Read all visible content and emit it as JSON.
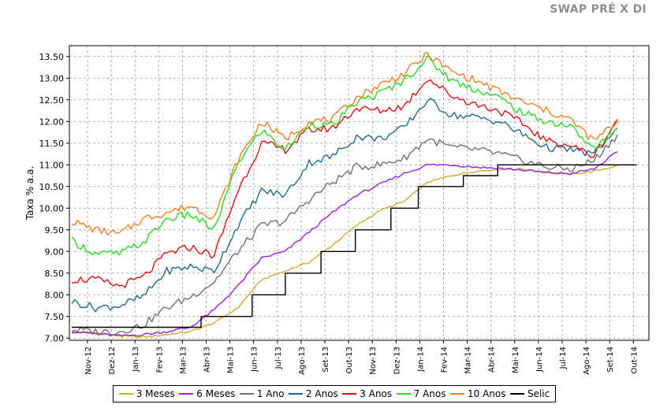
{
  "chart_data": {
    "type": "line",
    "title": "SWAP PRÉ X DI",
    "ylabel": "Taxa % a.a.",
    "xlabel": "",
    "ylim": [
      6.95,
      13.75
    ],
    "y_ticks": [
      "7.00",
      "7.50",
      "8.00",
      "8.50",
      "9.00",
      "9.50",
      "10.00",
      "10.50",
      "11.00",
      "11.50",
      "12.00",
      "12.50",
      "13.00",
      "13.50"
    ],
    "categories": [
      "Nov-12",
      "Dez-12",
      "Jan-13",
      "Fev-13",
      "Mar-13",
      "Abr-13",
      "Mai-13",
      "Jun-13",
      "Jul-13",
      "Ago-13",
      "Set-13",
      "Out-13",
      "Nov-13",
      "Dez-13",
      "Jan-14",
      "Fev-14",
      "Mar-14",
      "Abr-14",
      "Mai-14",
      "Jun-14",
      "Jul-14",
      "Ago-14",
      "Set-14",
      "Out-14"
    ],
    "grid": true,
    "legend_position": "bottom",
    "series": [
      {
        "name": "3 Meses",
        "color": "#d4aa2a",
        "values": [
          7.15,
          7.12,
          7.05,
          7.02,
          7.08,
          7.15,
          7.35,
          7.7,
          8.35,
          8.55,
          8.75,
          9.15,
          9.6,
          9.95,
          10.15,
          10.6,
          10.75,
          10.85,
          10.9,
          10.9,
          10.82,
          10.78,
          10.85,
          10.98
        ]
      },
      {
        "name": "6 Meses",
        "color": "#9a1fe0",
        "values": [
          7.15,
          7.1,
          7.05,
          7.08,
          7.15,
          7.25,
          7.65,
          8.2,
          8.85,
          9.0,
          9.45,
          9.9,
          10.3,
          10.55,
          10.8,
          11.0,
          11.0,
          10.95,
          10.92,
          10.88,
          10.82,
          10.8,
          10.9,
          11.3
        ]
      },
      {
        "name": "1 Ano",
        "color": "#707070",
        "values": [
          7.2,
          7.15,
          7.15,
          7.3,
          7.7,
          7.95,
          8.3,
          9.0,
          9.6,
          9.7,
          10.2,
          10.6,
          10.95,
          11.0,
          11.15,
          11.6,
          11.4,
          11.35,
          11.25,
          11.1,
          10.95,
          10.9,
          11.1,
          11.7
        ]
      },
      {
        "name": "2 Anos",
        "color": "#1e6a8f",
        "values": [
          7.85,
          7.7,
          7.75,
          7.95,
          8.55,
          8.65,
          8.55,
          9.6,
          10.4,
          10.3,
          11.05,
          11.2,
          11.65,
          11.6,
          11.85,
          12.5,
          12.15,
          12.1,
          12.0,
          11.7,
          11.4,
          11.35,
          11.25,
          11.85
        ]
      },
      {
        "name": "3 Anos",
        "color": "#e01010",
        "values": [
          8.35,
          8.35,
          8.2,
          8.4,
          8.95,
          9.1,
          8.9,
          10.4,
          11.5,
          11.35,
          11.8,
          11.85,
          12.3,
          12.25,
          12.35,
          13.0,
          12.6,
          12.4,
          12.25,
          11.95,
          11.55,
          11.45,
          11.2,
          12.05
        ]
      },
      {
        "name": "7 Anos",
        "color": "#22e01a",
        "values": [
          9.25,
          8.95,
          8.95,
          9.2,
          9.75,
          9.85,
          9.5,
          11.05,
          11.8,
          11.35,
          11.95,
          11.9,
          12.45,
          12.65,
          12.95,
          13.45,
          12.95,
          12.75,
          12.55,
          12.2,
          12.0,
          11.9,
          11.35,
          11.85
        ]
      },
      {
        "name": "10 Anos",
        "color": "#f08020",
        "values": [
          9.7,
          9.5,
          9.4,
          9.75,
          9.9,
          10.05,
          9.8,
          11.1,
          12.0,
          11.6,
          12.0,
          12.05,
          12.55,
          12.85,
          13.1,
          13.55,
          13.15,
          12.95,
          12.7,
          12.45,
          12.25,
          12.05,
          11.55,
          12.0
        ]
      },
      {
        "name": "Selic",
        "color": "#000000",
        "steps": [
          [
            0,
            7.25
          ],
          [
            2.45,
            7.25
          ],
          [
            5.45,
            7.5
          ],
          [
            6.5,
            7.5
          ],
          [
            7.0,
            7.5
          ],
          [
            7.6,
            8.0
          ],
          [
            9.0,
            8.5
          ],
          [
            10.5,
            9.0
          ],
          [
            11.95,
            9.5
          ],
          [
            13.45,
            10.0
          ],
          [
            14.6,
            10.5
          ],
          [
            16.5,
            10.75
          ],
          [
            17.95,
            11.0
          ],
          [
            23.8,
            11.0
          ]
        ]
      }
    ]
  }
}
